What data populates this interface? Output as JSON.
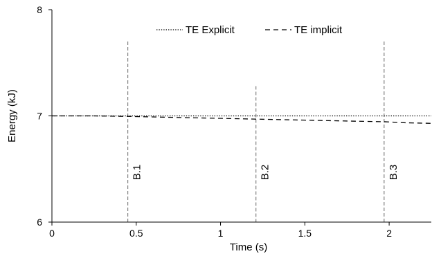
{
  "chart_data": {
    "type": "line",
    "title": "",
    "xlabel": "Time (s)",
    "ylabel": "Energy (kJ)",
    "xlim": [
      0,
      2.25
    ],
    "ylim": [
      6,
      8
    ],
    "x_ticks": [
      0,
      0.5,
      1,
      1.5,
      2
    ],
    "x_tick_labels": [
      "0",
      "0.5",
      "1",
      "1.5",
      "2"
    ],
    "y_ticks": [
      6,
      7,
      8
    ],
    "y_tick_labels": [
      "6",
      "7",
      "8"
    ],
    "grid": false,
    "legend_position": "top-center",
    "series": [
      {
        "name": "TE Explicit",
        "line_style": "dotted",
        "color": "#000000",
        "x": [
          0,
          0.25,
          0.5,
          0.75,
          1.0,
          1.25,
          1.5,
          1.75,
          2.0,
          2.25
        ],
        "y": [
          7.0,
          7.0,
          7.0,
          7.0,
          7.0,
          7.0,
          7.0,
          7.0,
          7.0,
          7.0
        ]
      },
      {
        "name": "TE implicit",
        "line_style": "dashed",
        "color": "#000000",
        "x": [
          0,
          0.25,
          0.45,
          0.6,
          0.9,
          1.2,
          1.5,
          1.8,
          1.97,
          2.1,
          2.25
        ],
        "y": [
          7.0,
          7.0,
          6.995,
          6.99,
          6.98,
          6.97,
          6.96,
          6.95,
          6.945,
          6.935,
          6.93
        ]
      }
    ],
    "markers": [
      {
        "label": "B.1",
        "x": 0.45,
        "y_top": 7.7,
        "color": "#808080"
      },
      {
        "label": "B.2",
        "x": 1.21,
        "y_top": 7.28,
        "color": "#808080"
      },
      {
        "label": "B.3",
        "x": 1.97,
        "y_top": 7.7,
        "color": "#808080"
      }
    ]
  }
}
